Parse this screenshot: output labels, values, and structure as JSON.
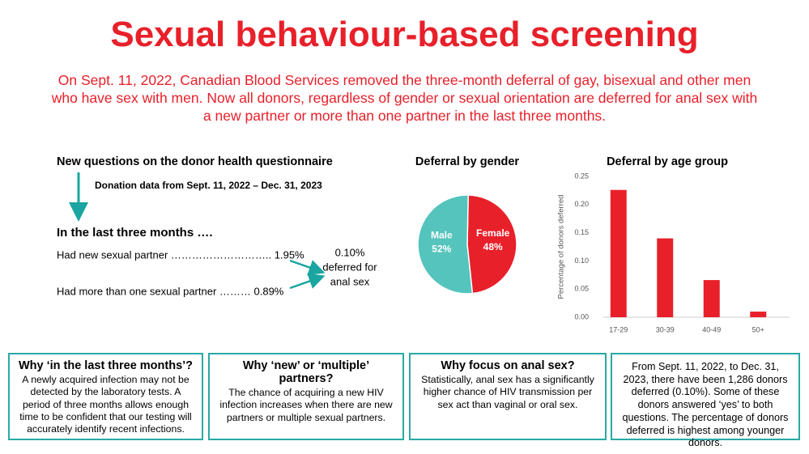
{
  "header": {
    "title": "Sexual behaviour-based screening",
    "subtitle_lines": [
      "On Sept. 11, 2022, Canadian Blood Services removed the three-month deferral of gay, bisexual and other men",
      "who have sex with men. Now all donors, regardless of gender or sexual orientation are deferred for anal sex with",
      "a new partner or more than one partner in the last three months."
    ]
  },
  "questions": {
    "heading": "New questions on the donor health questionnaire",
    "date_note": "Donation data from Sept. 11, 2022 – Dec. 31, 2023",
    "lead": "In the last three months ….",
    "items": [
      "Had new sexual partner ……………………….. 1.95%",
      "Had more than one sexual partner ……… 0.89%"
    ],
    "result_lines": [
      "0.10%",
      "deferred for",
      "anal sex"
    ]
  },
  "chart_data": [
    {
      "type": "pie",
      "title": "Deferral by gender",
      "categories": [
        "Female",
        "Male"
      ],
      "values": [
        48,
        52
      ],
      "value_labels": [
        "48%",
        "52%"
      ],
      "colors": [
        "#e8202a",
        "#55c4bd"
      ]
    },
    {
      "type": "bar",
      "title": "Deferral by age group",
      "ylabel": "Percentage of donors deferred",
      "categories": [
        "17-29",
        "30-39",
        "40-49",
        "50+"
      ],
      "values": [
        0.226,
        0.14,
        0.066,
        0.01
      ],
      "color": "#e8202a",
      "ylim": [
        0,
        0.25
      ],
      "grid": false,
      "yticks": [
        {
          "value": 0,
          "label": "0.00"
        },
        {
          "value": 0.05,
          "label": "0.05"
        },
        {
          "value": 0.1,
          "label": "0.10"
        },
        {
          "value": 0.15,
          "label": "0.15"
        },
        {
          "value": 0.2,
          "label": "0.20"
        },
        {
          "value": 0.25,
          "label": "0.25"
        }
      ]
    }
  ],
  "boxes": [
    {
      "title": "Why ‘in the last three months’?",
      "body": "A newly acquired infection may not be detected by the laboratory tests. A period of three months allows enough time to be confident that our testing will accurately identify recent infections."
    },
    {
      "title": "Why ‘new’ or ‘multiple’ partners?",
      "body": "The chance of acquiring a new HIV infection increases when there are new partners or multiple sexual partners."
    },
    {
      "title": "Why focus on anal sex?",
      "body": "Statistically, anal sex has a significantly higher chance of HIV transmission per sex act than vaginal or oral sex."
    },
    {
      "title": "",
      "body": "From Sept. 11, 2022, to Dec. 31, 2023, there have been 1,286 donors deferred (0.10%). Some of these donors answered ‘yes’ to both questions. The percentage of donors deferred is highest among younger donors."
    }
  ]
}
